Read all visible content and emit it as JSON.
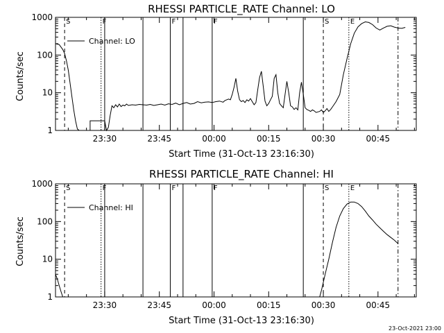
{
  "chart_data": [
    {
      "type": "line",
      "title": "RHESSI PARTICLE_RATE Channel: LO",
      "xlabel": "Start Time (31-Oct-13 23:16:30)",
      "ylabel": "Counts/sec",
      "yscale": "log",
      "xlim_minutes": [
        0,
        99
      ],
      "ylim": [
        1,
        1000
      ],
      "grid": false,
      "legend": "top-left",
      "x_ticks": [
        {
          "label": "23:30",
          "minute": 13.5
        },
        {
          "label": "23:45",
          "minute": 28.5
        },
        {
          "label": "00:00",
          "minute": 43.5
        },
        {
          "label": "00:15",
          "minute": 58.5
        },
        {
          "label": "00:30",
          "minute": 73.5
        },
        {
          "label": "00:45",
          "minute": 88.5
        }
      ],
      "y_ticks": [
        {
          "label": "1",
          "value": 1
        },
        {
          "label": "10",
          "value": 10
        },
        {
          "label": "100",
          "value": 100
        },
        {
          "label": "1000",
          "value": 1000
        }
      ],
      "series": [
        {
          "name": "Channel: LO",
          "x": [
            0,
            1,
            2,
            2.5,
            3,
            3.5,
            4,
            4.5,
            5,
            5.5,
            6,
            6.5,
            7,
            7.5,
            8,
            8.5,
            9.5,
            9.5,
            10,
            11,
            12,
            13.5,
            14,
            14.5,
            15,
            15.5,
            16,
            16.5,
            17,
            17.5,
            18,
            18.5,
            19,
            19.5,
            20,
            21,
            22,
            23,
            24,
            25,
            26,
            27,
            28,
            29,
            30,
            31,
            32,
            33,
            34,
            35,
            36,
            37,
            38,
            39,
            40,
            41,
            42,
            43,
            44,
            45,
            46,
            46.5,
            47,
            47.5,
            48,
            48.5,
            49,
            49.5,
            50,
            50.5,
            51,
            51.5,
            52,
            52.5,
            53,
            53.5,
            54,
            54.5,
            55,
            55.5,
            56,
            56.5,
            57,
            57.5,
            58,
            58.5,
            59,
            59.5,
            60,
            60.5,
            61,
            61.5,
            62,
            62.5,
            63,
            63.5,
            64,
            64.5,
            65,
            65.5,
            66,
            66.5,
            67,
            67.5,
            68,
            68.5,
            69,
            69.5,
            70,
            70.5,
            71,
            71.5,
            72,
            72.5,
            73,
            73.5,
            74,
            74.5,
            75,
            75.5,
            76,
            77,
            78,
            79,
            80,
            81,
            82,
            83,
            84,
            85,
            86,
            87,
            88,
            89,
            90,
            91,
            92,
            93,
            94,
            95,
            96
          ],
          "values": [
            200,
            190,
            140,
            110,
            70,
            40,
            18,
            8,
            3.5,
            1.8,
            1.1,
            1,
            1,
            1,
            1,
            1,
            1,
            1.8,
            1.8,
            1.8,
            1.8,
            1.8,
            1,
            1.2,
            2.5,
            4.5,
            4,
            4.8,
            4.2,
            5,
            4.3,
            4.7,
            4.5,
            5,
            4.6,
            4.8,
            4.7,
            4.9,
            4.8,
            4.7,
            4.9,
            4.6,
            4.8,
            5,
            4.7,
            5.1,
            4.9,
            5.3,
            4.8,
            5.2,
            5.5,
            5,
            5.2,
            5.8,
            5.4,
            5.6,
            5.7,
            5.5,
            5.8,
            6,
            5.6,
            6.2,
            6.5,
            6.8,
            6.5,
            9,
            14,
            24,
            11,
            6.5,
            5.8,
            6.2,
            5.5,
            6.5,
            6,
            7,
            5.8,
            4.8,
            5.5,
            12,
            25,
            37,
            15,
            6,
            4.5,
            5.2,
            6.5,
            8,
            24,
            30,
            10,
            5.2,
            4.5,
            4,
            9,
            20,
            10,
            4.5,
            4.2,
            3.6,
            4,
            3.5,
            10,
            19,
            9,
            4,
            3.6,
            3.4,
            3.2,
            3.5,
            3.3,
            3,
            3.1,
            3.2,
            3.5,
            3,
            3.3,
            3.8,
            3.2,
            3.6,
            4.2,
            5.8,
            9,
            30,
            80,
            200,
            380,
            560,
            680,
            760,
            730,
            640,
            520,
            460,
            520,
            580,
            600,
            550,
            520,
            510,
            540
          ]
        }
      ],
      "vlines": [
        {
          "label": "S",
          "minute": 2.5,
          "style": "dashed"
        },
        {
          "label": "F",
          "minute": 12.5,
          "style": "dotted"
        },
        {
          "label": "",
          "minute": 13.5,
          "style": "solid"
        },
        {
          "label": "",
          "minute": 24,
          "style": "solid"
        },
        {
          "label": "F",
          "minute": 31.5,
          "style": "solid"
        },
        {
          "label": "",
          "minute": 35,
          "style": "solid"
        },
        {
          "label": "F",
          "minute": 43,
          "style": "solid"
        },
        {
          "label": "",
          "minute": 68,
          "style": "solid"
        },
        {
          "label": "S",
          "minute": 73.5,
          "style": "dashed"
        },
        {
          "label": "E",
          "minute": 80.5,
          "style": "dotted"
        },
        {
          "label": "",
          "minute": 94,
          "style": "dashdot"
        }
      ]
    },
    {
      "type": "line",
      "title": "RHESSI PARTICLE_RATE Channel: HI",
      "xlabel": "Start Time (31-Oct-13 23:16:30)",
      "ylabel": "Counts/sec",
      "yscale": "log",
      "xlim_minutes": [
        0,
        99
      ],
      "ylim": [
        1,
        1000
      ],
      "grid": false,
      "legend": "top-left",
      "x_ticks": [
        {
          "label": "23:30",
          "minute": 13.5
        },
        {
          "label": "23:45",
          "minute": 28.5
        },
        {
          "label": "00:00",
          "minute": 43.5
        },
        {
          "label": "00:15",
          "minute": 58.5
        },
        {
          "label": "00:30",
          "minute": 73.5
        },
        {
          "label": "00:45",
          "minute": 88.5
        }
      ],
      "y_ticks": [
        {
          "label": "1",
          "value": 1
        },
        {
          "label": "10",
          "value": 10
        },
        {
          "label": "100",
          "value": 100
        },
        {
          "label": "1000",
          "value": 1000
        }
      ],
      "series": [
        {
          "name": "Channel: HI",
          "x": [
            0,
            0.5,
            1,
            1.5,
            2,
            72.5,
            73,
            74,
            75,
            76,
            77,
            78,
            79,
            80,
            81,
            82,
            83,
            84,
            85,
            86,
            87,
            88,
            89,
            90,
            91,
            92,
            93,
            94
          ],
          "values": [
            4,
            3,
            2,
            1.4,
            1,
            1,
            1.5,
            4,
            10,
            28,
            70,
            140,
            220,
            290,
            330,
            330,
            300,
            250,
            190,
            140,
            110,
            85,
            68,
            55,
            45,
            38,
            32,
            26
          ]
        }
      ],
      "vlines": [
        {
          "label": "S",
          "minute": 2.5,
          "style": "dashed"
        },
        {
          "label": "F",
          "minute": 12.5,
          "style": "dotted"
        },
        {
          "label": "",
          "minute": 13.5,
          "style": "solid"
        },
        {
          "label": "",
          "minute": 24,
          "style": "solid"
        },
        {
          "label": "F",
          "minute": 31.5,
          "style": "solid"
        },
        {
          "label": "",
          "minute": 35,
          "style": "solid"
        },
        {
          "label": "F",
          "minute": 43,
          "style": "solid"
        },
        {
          "label": "",
          "minute": 68,
          "style": "solid"
        },
        {
          "label": "S",
          "minute": 73.5,
          "style": "dashed"
        },
        {
          "label": "E",
          "minute": 80.5,
          "style": "dotted"
        },
        {
          "label": "",
          "minute": 94,
          "style": "dashdot"
        }
      ]
    }
  ],
  "footer": {
    "timestamp": "23-Oct-2021 23:00"
  }
}
